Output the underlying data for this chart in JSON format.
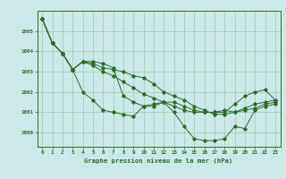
{
  "xlabel": "Graphe pression niveau de la mer (hPa)",
  "xlim": [
    -0.5,
    23.5
  ],
  "ylim": [
    999.3,
    1006.0
  ],
  "yticks": [
    1000,
    1001,
    1002,
    1003,
    1004,
    1005
  ],
  "xticks": [
    0,
    1,
    2,
    3,
    4,
    5,
    6,
    7,
    8,
    9,
    10,
    11,
    12,
    13,
    14,
    15,
    16,
    17,
    18,
    19,
    20,
    21,
    22,
    23
  ],
  "bg_color": "#cbe9e9",
  "line_color": "#2d6a2d",
  "grid_color": "#99ccaa",
  "lines": [
    [
      1005.6,
      1004.4,
      1003.9,
      1003.1,
      1003.5,
      1003.3,
      1003.0,
      1002.8,
      1002.5,
      1002.2,
      1001.9,
      1001.7,
      1001.5,
      1001.3,
      1001.1,
      1001.0,
      1001.0,
      1001.0,
      1001.1,
      1001.0,
      1001.2,
      1001.4,
      1001.5,
      1001.6
    ],
    [
      1005.6,
      1004.4,
      1003.9,
      1003.1,
      1002.0,
      1001.6,
      1001.1,
      1001.0,
      1000.9,
      1000.8,
      1001.3,
      1001.4,
      1001.5,
      1001.0,
      1000.3,
      999.7,
      999.6,
      999.6,
      999.7,
      1000.3,
      1000.2,
      1001.1,
      1001.3,
      1001.4
    ],
    [
      1005.6,
      1004.4,
      1003.9,
      1003.1,
      1003.5,
      1003.5,
      1003.4,
      1003.2,
      1001.8,
      1001.5,
      1001.3,
      1001.3,
      1001.5,
      1001.5,
      1001.3,
      1001.1,
      1001.0,
      1001.0,
      1001.0,
      1001.4,
      1001.8,
      1002.0,
      1002.1,
      1001.6
    ],
    [
      1005.6,
      1004.4,
      1003.9,
      1003.1,
      1003.5,
      1003.4,
      1003.2,
      1003.1,
      1003.0,
      1002.8,
      1002.7,
      1002.4,
      1002.0,
      1001.8,
      1001.6,
      1001.3,
      1001.1,
      1000.9,
      1000.9,
      1001.0,
      1001.1,
      1001.2,
      1001.4,
      1001.5
    ]
  ]
}
